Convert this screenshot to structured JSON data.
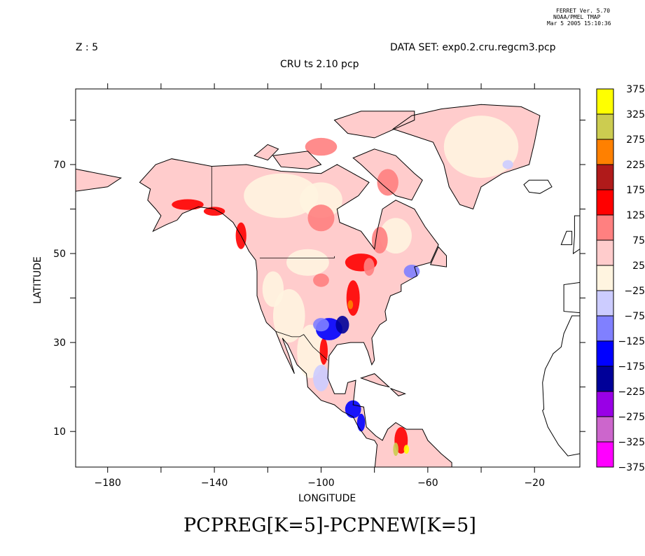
{
  "header": {
    "ferret_lines": [
      "FERRET Ver. 5.70",
      "NOAA/PMEL TMAP",
      "Mar  5 2005 15:10:36"
    ],
    "z_label": "Z : 5",
    "dataset_label": "DATA SET: exp0.2.cru.regcm3.pcp",
    "subtitle": "CRU ts 2.10 pcp"
  },
  "chart_data": {
    "type": "heatmap",
    "title": "PCPREG[K=5]-PCPNEW[K=5]",
    "subtitle": "CRU ts 2.10 pcp",
    "xlabel": "LONGITUDE",
    "ylabel": "LATITUDE",
    "xlim": [
      -192,
      -3
    ],
    "ylim": [
      2,
      87
    ],
    "xticks": [
      -180,
      -140,
      -100,
      -60,
      -20
    ],
    "xtick_labels": [
      "−180",
      "−140",
      "−100",
      "−60",
      "−20"
    ],
    "yticks": [
      10,
      30,
      50,
      70
    ],
    "ytick_labels": [
      "10",
      "30",
      "50",
      "70"
    ],
    "grid": false,
    "colorbar": {
      "position": "right",
      "levels": [
        "375",
        "325",
        "275",
        "225",
        "175",
        "125",
        "75",
        "25",
        "−25",
        "−75",
        "−125",
        "−175",
        "−225",
        "−275",
        "−325",
        "−375"
      ],
      "colors": [
        "#ffff00",
        "#cccc50",
        "#ff8000",
        "#b01a1a",
        "#ff0000",
        "#ff8080",
        "#ffcccc",
        "#fff4e0",
        "#ccccff",
        "#8080ff",
        "#0000ff",
        "#000099",
        "#9900e6",
        "#cc66cc",
        "#ff00ff"
      ]
    }
  }
}
